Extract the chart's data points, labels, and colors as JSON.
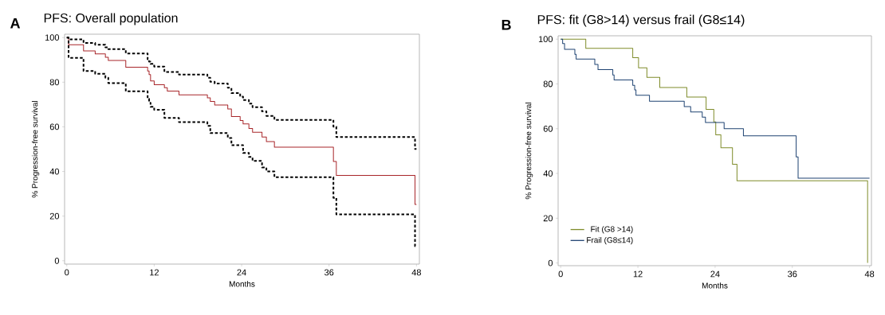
{
  "chart_data": [
    {
      "type": "step",
      "title": "PFS: Overall population",
      "xlabel": "Months",
      "ylabel": "% Progression-free survival",
      "annotations": [
        "A"
      ],
      "xlim": [
        -0.3,
        48.4
      ],
      "ylim": [
        -1.5,
        101.5
      ],
      "xticks": [
        0,
        12,
        24,
        36,
        48
      ],
      "yticks": [
        0,
        20,
        40,
        60,
        80,
        100
      ],
      "series": [
        {
          "color": "#a8262a",
          "x": [
            0,
            0.25,
            2.3,
            3.9,
            5.3,
            5.7,
            8.1,
            11.1,
            11.3,
            11.5,
            12.0,
            13.4,
            13.8,
            15.4,
            19.3,
            19.7,
            20.3,
            22.1,
            22.6,
            23.8,
            24.2,
            25.0,
            25.5,
            26.8,
            27.4,
            28.5,
            36.6,
            37.0,
            47.8,
            48
          ],
          "values": [
            100,
            96.8,
            94.0,
            92.7,
            91.2,
            89.7,
            86.7,
            85.0,
            83.4,
            80.6,
            78.9,
            77.5,
            76.0,
            74.3,
            73.0,
            71.4,
            69.8,
            68.0,
            64.6,
            62.8,
            61.3,
            59.3,
            57.6,
            55.4,
            53.4,
            50.9,
            44.5,
            38.2,
            25.2,
            25.2
          ]
        },
        {
          "color": "#000000",
          "line_style": "dashed",
          "x": [
            0,
            0.25,
            2.3,
            3.9,
            5.3,
            5.7,
            8.1,
            11.1,
            11.3,
            11.5,
            12.0,
            13.4,
            13.8,
            15.4,
            19.3,
            19.7,
            20.3,
            22.1,
            22.6,
            23.8,
            24.2,
            25.0,
            25.5,
            26.8,
            27.4,
            28.5,
            36.6,
            37.0,
            47.8,
            48
          ],
          "values": [
            100,
            99.2,
            97.6,
            96.8,
            95.6,
            94.8,
            92.9,
            90.3,
            89.2,
            88.2,
            87.0,
            84.6,
            84.6,
            83.4,
            82.0,
            80.2,
            79.4,
            77.5,
            75.1,
            73.5,
            72.0,
            70.4,
            68.8,
            66.9,
            64.9,
            63.1,
            60.1,
            55.4,
            50.1,
            50.1
          ]
        },
        {
          "color": "#000000",
          "line_style": "dashed",
          "x": [
            0,
            0.25,
            2.3,
            3.9,
            5.3,
            5.7,
            8.1,
            11.1,
            11.3,
            11.5,
            12.0,
            13.4,
            13.8,
            15.4,
            19.3,
            19.7,
            20.3,
            22.1,
            22.6,
            23.8,
            24.2,
            25.0,
            25.5,
            26.8,
            27.4,
            28.5,
            36.6,
            37.0,
            47.8,
            48
          ],
          "values": [
            100,
            90.9,
            85.0,
            83.8,
            82.0,
            79.6,
            75.9,
            72.5,
            70.8,
            69.0,
            67.6,
            64.0,
            64.0,
            62.1,
            60.4,
            57.2,
            57.2,
            55.0,
            51.8,
            51.8,
            48.3,
            46.5,
            44.7,
            41.8,
            40.0,
            37.4,
            28.2,
            20.8,
            6.5,
            6.5
          ]
        }
      ]
    },
    {
      "type": "step",
      "title": "PFS: fit (G8>14)  versus frail (G8≤14)",
      "xlabel": "Months",
      "ylabel": "% Progression-free survival",
      "annotations": [
        "B"
      ],
      "legend": "bottom left",
      "xlim": [
        -0.4,
        48.3
      ],
      "ylim": [
        -1.2,
        101.5
      ],
      "xticks": [
        0,
        12,
        24,
        36,
        48
      ],
      "yticks": [
        0,
        20,
        40,
        60,
        80,
        100
      ],
      "series": [
        {
          "name": "Fit (G8 >14)",
          "color": "#7f8c2a",
          "x": [
            0,
            3.9,
            11.2,
            12.1,
            13.4,
            15.4,
            19.6,
            22.6,
            23.8,
            24.1,
            24.9,
            26.7,
            27.4,
            47.7
          ],
          "values": [
            100,
            95.9,
            91.7,
            87.2,
            82.9,
            78.4,
            74.1,
            68.6,
            63.0,
            57.3,
            51.5,
            44.1,
            36.7,
            0
          ]
        },
        {
          "name": "Frail (G8≤14)",
          "color": "#1f4372",
          "x": [
            0,
            0.3,
            0.6,
            2.2,
            2.4,
            5.3,
            5.8,
            8.1,
            8.3,
            11.2,
            11.5,
            11.7,
            13.8,
            19.2,
            20.2,
            22.0,
            22.5,
            25.4,
            28.4,
            36.6,
            36.9,
            48
          ],
          "values": [
            100,
            98.0,
            95.5,
            93.2,
            91.1,
            88.7,
            86.4,
            84.0,
            81.8,
            79.4,
            77.3,
            74.9,
            72.3,
            69.9,
            67.5,
            65.2,
            62.8,
            60.0,
            56.8,
            47.4,
            37.9,
            37.9
          ]
        }
      ]
    }
  ]
}
